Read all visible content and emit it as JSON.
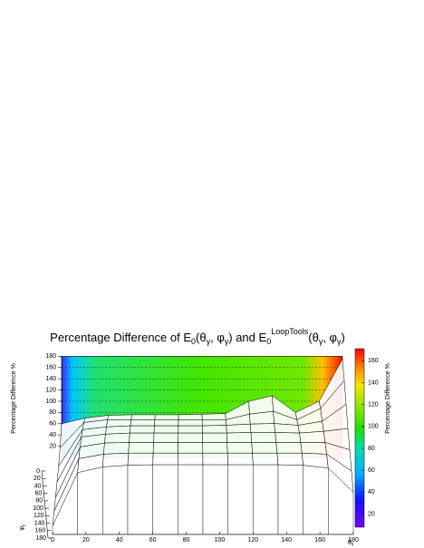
{
  "chart_data": {
    "type": "surface",
    "title": [
      "Percentage Difference of E",
      "0",
      "(θ",
      "γ",
      ", φ",
      "γ",
      ") and E",
      "0",
      "LoopTools",
      "(θ",
      "γ",
      ", φ",
      "γ",
      ")"
    ],
    "x_label": [
      "θ",
      "γ"
    ],
    "y_label": [
      "φ",
      "γ"
    ],
    "z_label": "Percentage Difference %",
    "x": [
      0,
      15,
      30,
      45,
      60,
      75,
      90,
      105,
      120,
      135,
      150,
      165,
      180
    ],
    "y": [
      0,
      30,
      60,
      90,
      120,
      150,
      180
    ],
    "values": [
      [
        60,
        70,
        75,
        76,
        76,
        76,
        77,
        78,
        100,
        110,
        80,
        100,
        175
      ],
      [
        40,
        85,
        90,
        90,
        90,
        90,
        90,
        90,
        100,
        105,
        90,
        110,
        160
      ],
      [
        30,
        95,
        100,
        102,
        102,
        102,
        102,
        103,
        105,
        106,
        103,
        110,
        140
      ],
      [
        25,
        105,
        110,
        112,
        112,
        112,
        112,
        112,
        113,
        113,
        112,
        115,
        120
      ],
      [
        20,
        110,
        117,
        118,
        118,
        118,
        118,
        118,
        118,
        118,
        118,
        118,
        105
      ],
      [
        18,
        112,
        120,
        122,
        122,
        122,
        122,
        122,
        122,
        122,
        122,
        120,
        90
      ],
      [
        15,
        110,
        120,
        123,
        124,
        124,
        124,
        124,
        124,
        124,
        123,
        118,
        75
      ]
    ],
    "xlim": [
      0,
      180
    ],
    "xticks": [
      0,
      20,
      40,
      60,
      80,
      100,
      120,
      140,
      160,
      180
    ],
    "ylim": [
      0,
      180
    ],
    "yticks": [
      0,
      20,
      40,
      60,
      80,
      100,
      120,
      140,
      160,
      180
    ],
    "zlim": [
      0,
      180
    ],
    "zticks": [
      20,
      40,
      60,
      80,
      100,
      120,
      140,
      160,
      180
    ],
    "colorbar": {
      "label": "Percentage Difference %",
      "lim": [
        8,
        171
      ],
      "ticks": [
        20,
        40,
        60,
        80,
        100,
        120,
        140,
        160
      ]
    },
    "grid": true
  }
}
